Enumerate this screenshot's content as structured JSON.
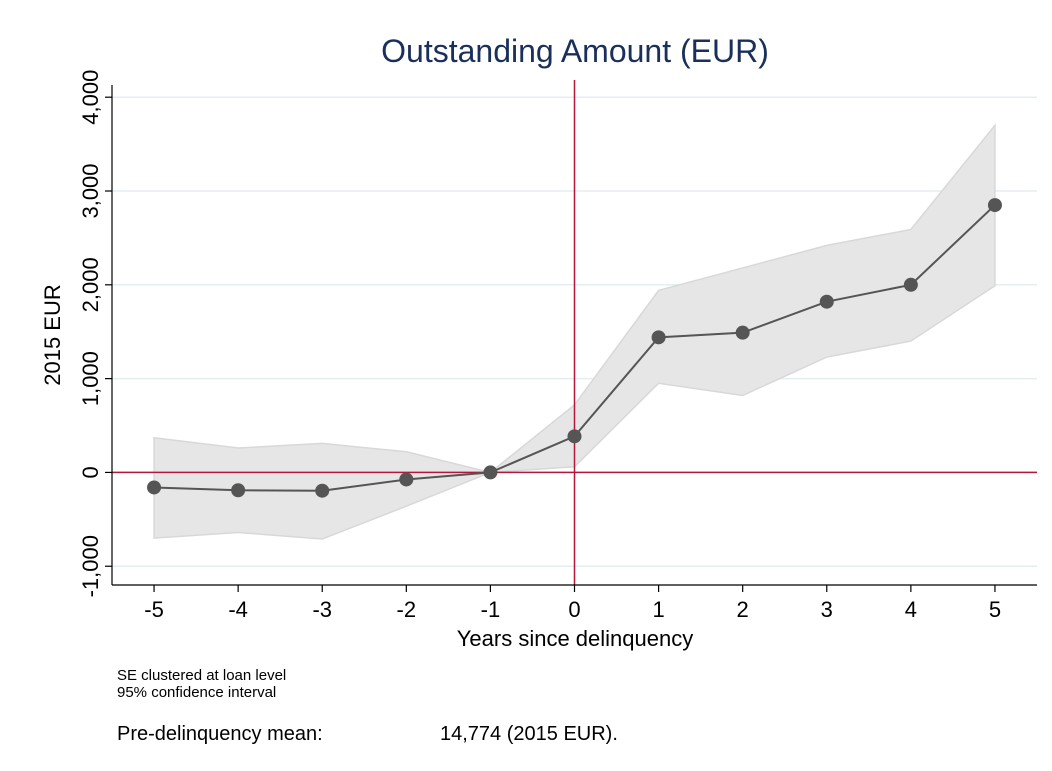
{
  "chart_data": {
    "type": "line",
    "title": "Outstanding Amount (EUR)",
    "x_label": "Years since delinquency",
    "y_label": "2015 EUR",
    "x": [
      -5,
      -4,
      -3,
      -2,
      -1,
      0,
      1,
      2,
      3,
      4,
      5
    ],
    "series": [
      {
        "color": "#555555",
        "values": [
          -160,
          -190,
          -195,
          -75,
          0,
          385,
          1440,
          1490,
          1820,
          2000,
          2850
        ]
      }
    ],
    "ci_lower": [
      -700,
      -640,
      -710,
      -360,
      0,
      60,
      950,
      820,
      1230,
      1400,
      1990
    ],
    "ci_upper": [
      370,
      260,
      310,
      220,
      0,
      720,
      1940,
      2180,
      2420,
      2590,
      3700
    ],
    "ci_color": "#e6e6e6",
    "xlim": [
      -5.5,
      5.5
    ],
    "xticks": [
      -5,
      -4,
      -3,
      -2,
      -1,
      0,
      1,
      2,
      3,
      4,
      5
    ],
    "ylim": [
      -1200,
      4130
    ],
    "yticks": [
      {
        "value": -1000,
        "label": "-1,000"
      },
      0,
      {
        "value": 1000,
        "label": "1,000"
      },
      {
        "value": 2000,
        "label": "2,000"
      },
      {
        "value": 3000,
        "label": "3,000"
      },
      {
        "value": 4000,
        "label": "4,000"
      }
    ],
    "grid": true,
    "ref_x": 0,
    "ref_y": 0,
    "ref_color": "#b5173b",
    "notes": [
      "SE clustered at loan level",
      "95% confidence interval"
    ],
    "mean_label": "Pre-delinquency mean:",
    "mean_value": "14,774 (2015 EUR)."
  }
}
